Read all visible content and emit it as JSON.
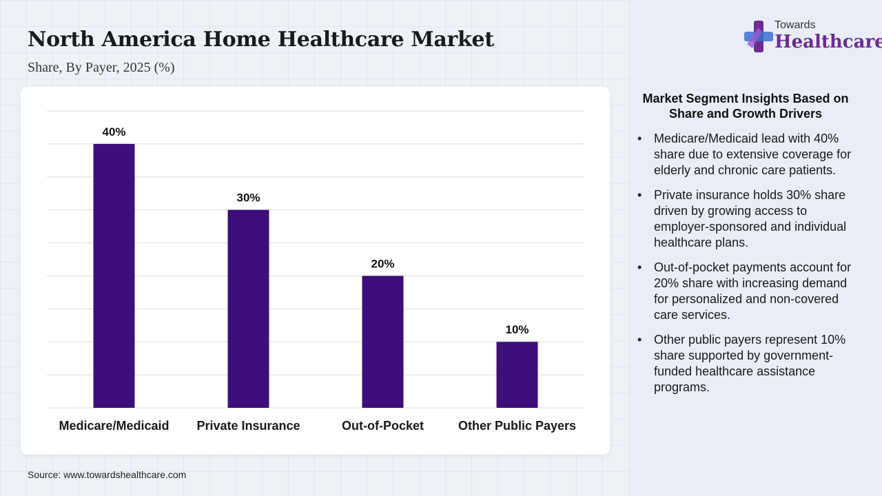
{
  "header": {
    "title": "North America Home Healthcare Market",
    "subtitle": "Share, By Payer, 2025 (%)"
  },
  "logo": {
    "top_text": "Towards",
    "brand_text": "Healthcare",
    "icon": "plus-cross-icon",
    "colors": {
      "primary": "#6a2c91",
      "secondary": "#3d6fd6"
    }
  },
  "chart_data": {
    "type": "bar",
    "categories": [
      "Medicare/Medicaid",
      "Private Insurance",
      "Out-of-Pocket",
      "Other Public Payers"
    ],
    "values": [
      40,
      30,
      20,
      10
    ],
    "data_labels": [
      "40%",
      "30%",
      "20%",
      "10%"
    ],
    "ylim": [
      0,
      45
    ],
    "grid": true,
    "bar_color": "#3d0f7a"
  },
  "insights": {
    "title": "Market Segment Insights Based on Share and Growth Drivers",
    "items": [
      "Medicare/Medicaid lead with 40% share due to extensive coverage for elderly and chronic care patients.",
      "Private insurance holds 30% share driven by growing access to employer-sponsored and individual healthcare plans.",
      "Out-of-pocket payments account for 20% share with increasing demand for personalized and non-covered care services.",
      "Other public payers represent 10% share supported by government-funded healthcare assistance programs."
    ]
  },
  "footer": {
    "source": "Source: www.towardshealthcare.com"
  }
}
